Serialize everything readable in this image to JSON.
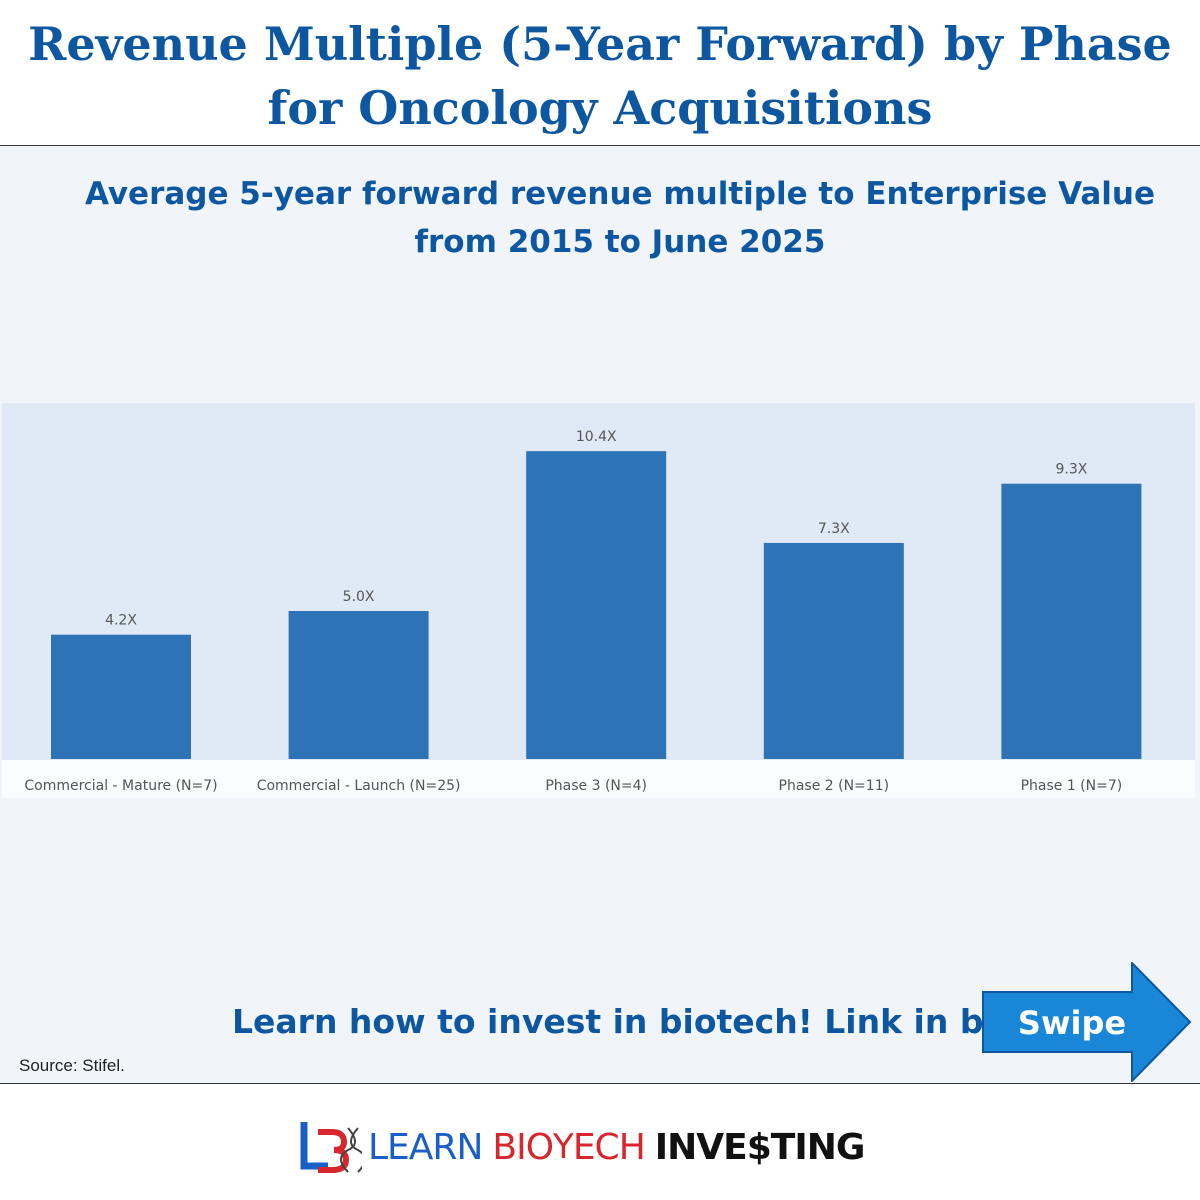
{
  "header": {
    "title_line1": "Revenue Multiple (5-Year Forward) by Phase",
    "title_line2": "for Oncology Acquisitions"
  },
  "chart_data": {
    "type": "bar",
    "title": "Average 5-year forward revenue multiple to Enterprise Value",
    "subtitle": "from 2015 to June 2025",
    "categories": [
      "Commercial - Mature (N=7)",
      "Commercial - Launch (N=25)",
      "Phase 3 (N=4)",
      "Phase 2 (N=11)",
      "Phase 1 (N=7)"
    ],
    "values": [
      4.2,
      5.0,
      10.4,
      7.3,
      9.3
    ],
    "data_labels": [
      "4.2X",
      "5.0X",
      "10.4X",
      "7.3X",
      "9.3X"
    ],
    "ylim": [
      0,
      12
    ],
    "grid": false,
    "colors": {
      "bar": "#2e73b5",
      "plot_bg": "#dfeaf6",
      "label": "#555555"
    }
  },
  "cta": {
    "text": "Learn how to invest in biotech! Link in bio",
    "swipe_label": "Swipe"
  },
  "source": "Source: Stifel.",
  "logo": {
    "learn": "LEARN",
    "bio": "BIO",
    "tech": "ECH",
    "investing": "INVE$TING"
  },
  "colors": {
    "brand_blue": "#0d57a0",
    "swipe_blue": "#1a86d8",
    "logo_red": "#d7262e"
  }
}
